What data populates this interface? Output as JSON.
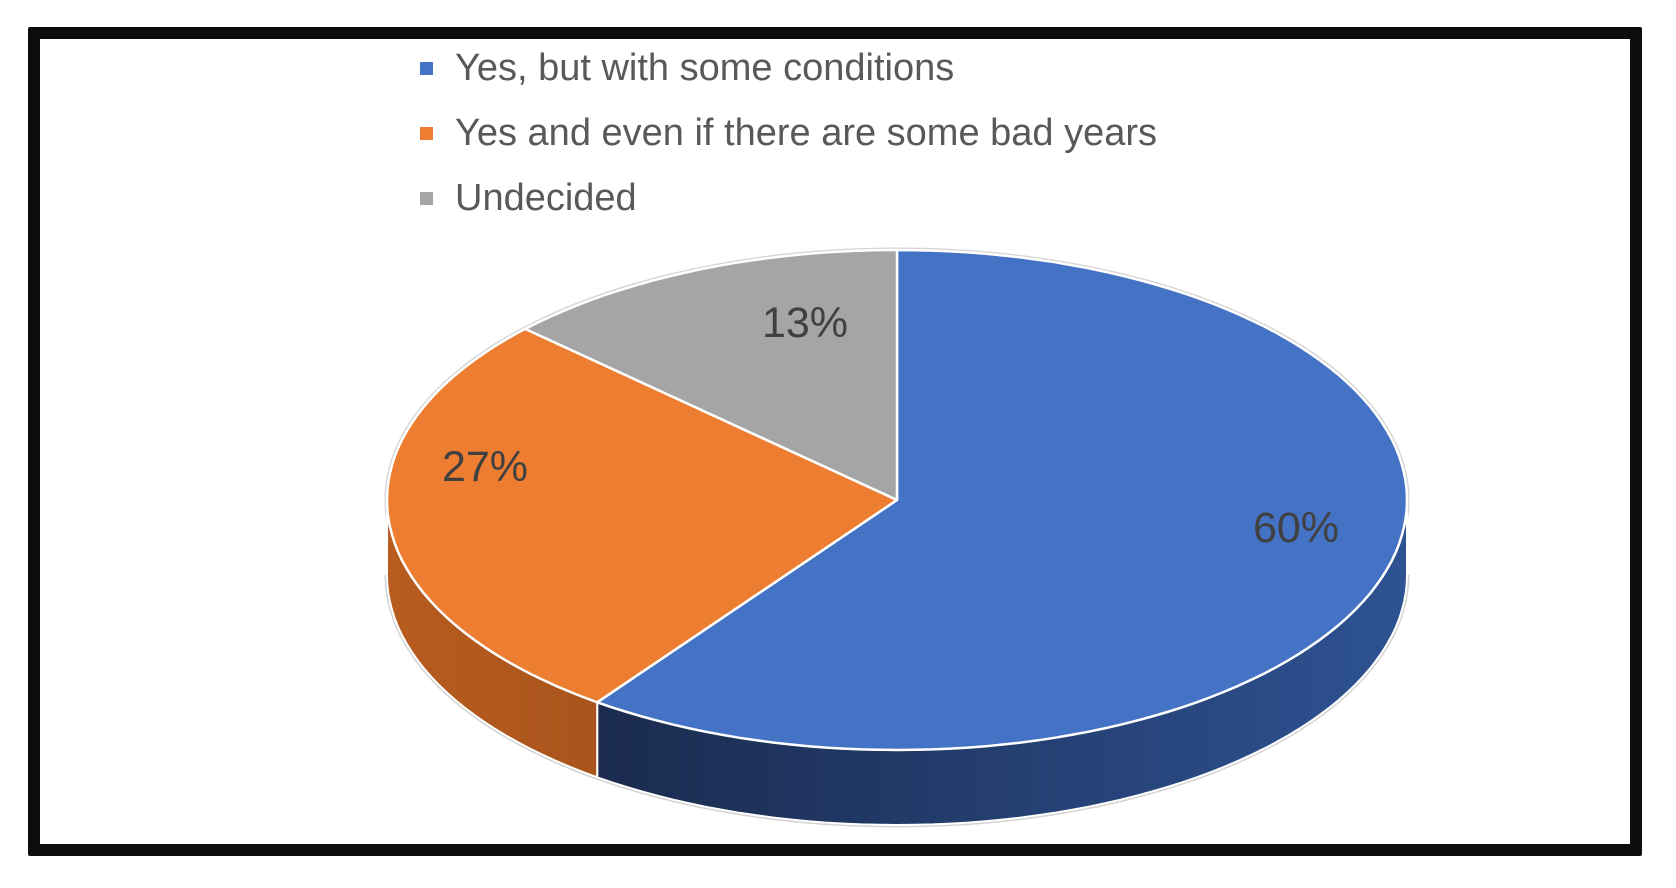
{
  "chart_data": {
    "type": "pie",
    "style": "3d",
    "title": "",
    "direction": "clockwise",
    "start_angle_deg": 0,
    "legend_position": "top-left",
    "legend_text_color": "#595959",
    "data_label_color": "#404040",
    "slices": [
      {
        "label": "Yes, but with some conditions",
        "value": 60,
        "data_label": "60%",
        "color": "#4472C4",
        "side_color_start": "#2E5292",
        "side_color_end": "#1A2B4E"
      },
      {
        "label": "Yes and even if there are some bad years",
        "value": 27,
        "data_label": "27%",
        "color": "#ED7D31",
        "side_color_start": "#A9541C",
        "side_color_end": "#B85C1F"
      },
      {
        "label": "Undecided",
        "value": 13,
        "data_label": "13%",
        "color": "#A5A5A5",
        "side_color_start": null,
        "side_color_end": null
      }
    ]
  },
  "frame": {
    "border_color": "#0d0d0d",
    "background": "#ffffff"
  }
}
